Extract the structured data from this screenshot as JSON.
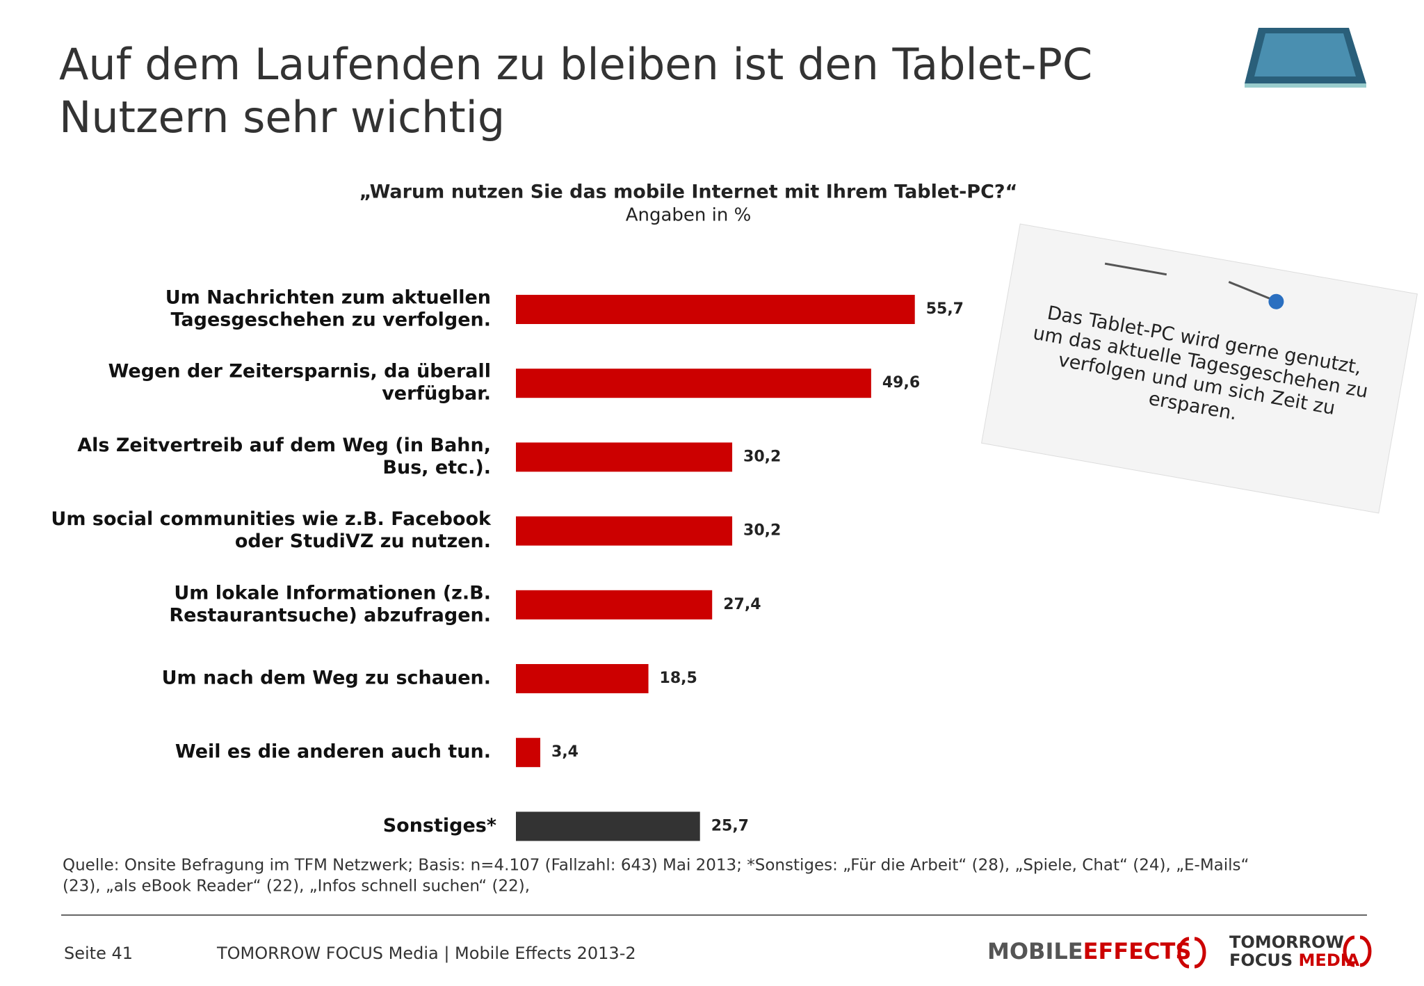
{
  "chart_data": {
    "type": "hbar",
    "title": [
      "Auf dem Laufenden zu bleiben ist den Tablet-PC",
      "Nutzern sehr wichtig"
    ],
    "question": "„Warum nutzen Sie das mobile Internet mit Ihrem Tablet-PC?“",
    "subtitle": "Angaben in %",
    "categories": [
      [
        "Um Nachrichten zum aktuellen",
        "Tagesgeschehen zu verfolgen."
      ],
      [
        "Wegen der Zeitersparnis, da überall",
        "verfügbar."
      ],
      [
        "Als Zeitvertreib auf dem Weg (in Bahn,",
        "Bus, etc.)."
      ],
      [
        "Um social communities wie z.B. Facebook",
        "oder StudiVZ zu nutzen."
      ],
      [
        "Um lokale Informationen (z.B.",
        "Restaurantsuche) abzufragen."
      ],
      [
        "Um nach dem Weg zu schauen."
      ],
      [
        "Weil es die anderen auch tun."
      ],
      [
        "Sonstiges*"
      ]
    ],
    "values": [
      55.7,
      49.6,
      30.2,
      30.2,
      27.4,
      18.5,
      3.4,
      25.7
    ],
    "value_labels": [
      "55,7",
      "49,6",
      "30,2",
      "30,2",
      "27,4",
      "18,5",
      "3,4",
      "25,7"
    ],
    "colors": [
      "#cc0000",
      "#cc0000",
      "#cc0000",
      "#cc0000",
      "#cc0000",
      "#cc0000",
      "#cc0000",
      "#333333"
    ],
    "label_colors": [
      "#cc0000",
      "#cc0000",
      "#cc0000",
      "#cc0000",
      "#cc0000",
      "#cc0000",
      "#cc0000",
      "#222222"
    ],
    "note": [
      "Das Tablet-PC wird gerne genutzt,",
      "um das aktuelle Tagesgeschehen zu",
      "verfolgen und um sich Zeit zu",
      "ersparen."
    ],
    "source": [
      "Quelle: Onsite Befragung im TFM Netzwerk; Basis: n=4.107 (Fallzahl: 643) Mai 2013; *Sonstiges: „Für die Arbeit“ (28), „Spiele, Chat“ (24), „E-Mails“",
      "(23), „als eBook Reader“ (22), „Infos schnell suchen“ (22),"
    ]
  },
  "footer": {
    "page": "Seite 41",
    "publisher": "TOMORROW FOCUS Media | Mobile Effects 2013-2",
    "logo1a": "MOBILE",
    "logo1b": "EFFECTS",
    "logo2a": "TOMORROW",
    "logo2b": "FOCUS",
    "logo2c": "MEDIA"
  }
}
